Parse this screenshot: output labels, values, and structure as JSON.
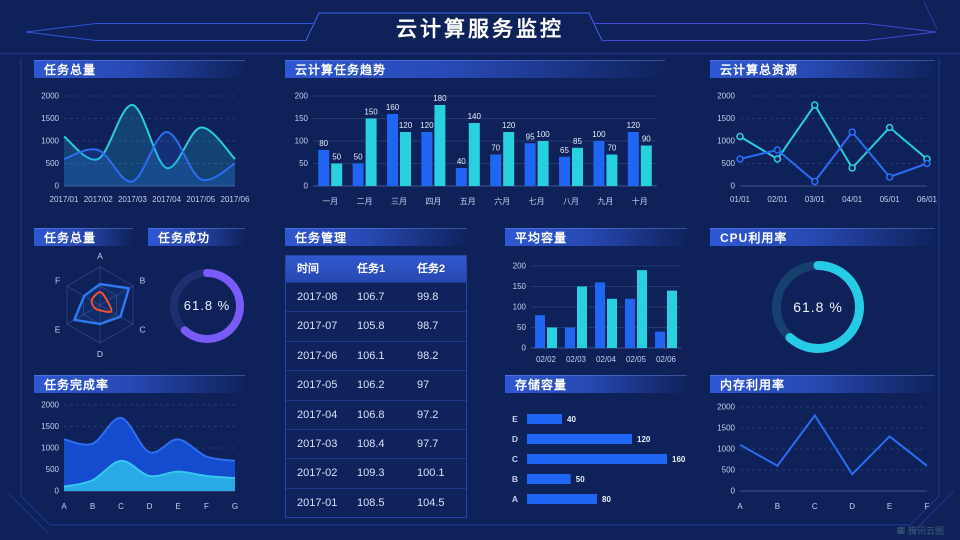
{
  "header": {
    "title": "云计算服务监控"
  },
  "watermark": {
    "label": "腾讯云图"
  },
  "colors": {
    "background": "#0e2159",
    "series_blue": "#1f66f2",
    "series_cyan": "#28d0e0",
    "accent_purple": "#7a5bf7",
    "accent_red": "#f2512e",
    "grid": "rgba(175,190,225,0.22)",
    "axis_line": "rgba(175,190,225,0.45)",
    "axis_text": "#c6d1ee",
    "value_label": "#e8eefc",
    "donut_track_purple": "#1d2f6f",
    "donut_track_cyan": "#17406e",
    "frame_line": "#2a4ac0"
  },
  "panels": {
    "task_total_top": {
      "title": "任务总量"
    },
    "task_trend": {
      "title": "云计算任务趋势"
    },
    "total_resources": {
      "title": "云计算总资源"
    },
    "task_total_radar": {
      "title": "任务总量"
    },
    "task_success": {
      "title": "任务成功",
      "value": "61.8 %"
    },
    "task_management": {
      "title": "任务管理"
    },
    "avg_capacity": {
      "title": "平均容量"
    },
    "cpu_usage": {
      "title": "CPU利用率",
      "value": "61.8 %"
    },
    "task_completion": {
      "title": "任务完成率"
    },
    "storage_capacity": {
      "title": "存储容量"
    },
    "memory_usage": {
      "title": "内存利用率"
    }
  },
  "chart_data": [
    {
      "id": "task_total_top",
      "type": "area",
      "smooth": true,
      "area": "faint",
      "grid": "dashed",
      "x": [
        "2017/01",
        "2017/02",
        "2017/03",
        "2017/04",
        "2017/05",
        "2017/06"
      ],
      "series": [
        {
          "name": "cyan",
          "color": "#28cede",
          "values": [
            1100,
            600,
            1800,
            400,
            1300,
            600
          ]
        },
        {
          "name": "blue",
          "color": "#2b6cf2",
          "values": [
            600,
            800,
            100,
            1200,
            150,
            500
          ]
        }
      ],
      "ylim": [
        0,
        2000
      ],
      "yticks": [
        0,
        500,
        1000,
        1500,
        2000
      ]
    },
    {
      "id": "task_trend",
      "type": "bar",
      "grid": "solid",
      "value_labels": true,
      "categories": [
        "一月",
        "二月",
        "三月",
        "四月",
        "五月",
        "六月",
        "七月",
        "八月",
        "九月",
        "十月"
      ],
      "series": [
        {
          "name": "任务1",
          "color": "#1f66f2",
          "values": [
            80,
            50,
            160,
            120,
            40,
            70,
            95,
            65,
            100,
            120
          ]
        },
        {
          "name": "任务2",
          "color": "#28d0e0",
          "values": [
            50,
            150,
            120,
            180,
            140,
            120,
            100,
            85,
            70,
            90
          ]
        }
      ],
      "ylim": [
        0,
        200
      ],
      "yticks": [
        0,
        50,
        100,
        150,
        200
      ]
    },
    {
      "id": "total_resources",
      "type": "line",
      "smooth": false,
      "markers": true,
      "grid": "dashed",
      "x": [
        "01/01",
        "02/01",
        "03/01",
        "04/01",
        "05/01",
        "06/01"
      ],
      "series": [
        {
          "name": "cyan",
          "color": "#28cede",
          "values": [
            1100,
            600,
            1800,
            400,
            1300,
            600
          ]
        },
        {
          "name": "blue",
          "color": "#2b6cf2",
          "values": [
            600,
            800,
            100,
            1200,
            200,
            500
          ]
        }
      ],
      "ylim": [
        0,
        2000
      ],
      "yticks": [
        0,
        500,
        1000,
        1500,
        2000
      ]
    },
    {
      "id": "task_total_radar",
      "type": "radar",
      "axes": [
        "A",
        "B",
        "C",
        "D",
        "E",
        "F"
      ],
      "max": 100,
      "series": [
        {
          "name": "blue",
          "color": "#2e7bf2",
          "smooth": false,
          "values": [
            55,
            88,
            62,
            50,
            78,
            48
          ]
        },
        {
          "name": "red",
          "color": "#f2512e",
          "smooth": true,
          "values": [
            34,
            22,
            34,
            14,
            16,
            25
          ]
        }
      ]
    },
    {
      "id": "task_success",
      "type": "donut",
      "percent": 61.8,
      "label": "61.8 %",
      "color": "#7a5bf7",
      "track": "#1d2f6f"
    },
    {
      "id": "task_management",
      "type": "table",
      "columns": [
        "时间",
        "任务1",
        "任务2"
      ],
      "rows": [
        [
          "2017-08",
          "106.7",
          "99.8"
        ],
        [
          "2017-07",
          "105.8",
          "98.7"
        ],
        [
          "2017-06",
          "106.1",
          "98.2"
        ],
        [
          "2017-05",
          "106.2",
          "97"
        ],
        [
          "2017-04",
          "106.8",
          "97.2"
        ],
        [
          "2017-03",
          "108.4",
          "97.7"
        ],
        [
          "2017-02",
          "109.3",
          "100.1"
        ],
        [
          "2017-01",
          "108.5",
          "104.5"
        ]
      ]
    },
    {
      "id": "avg_capacity",
      "type": "bar",
      "grid": "solid",
      "value_labels": false,
      "categories": [
        "02/02",
        "02/03",
        "02/04",
        "02/05",
        "02/06"
      ],
      "series": [
        {
          "name": "blue",
          "color": "#1f66f2",
          "values": [
            80,
            50,
            160,
            120,
            40
          ]
        },
        {
          "name": "cyan",
          "color": "#28d0e0",
          "values": [
            50,
            150,
            120,
            190,
            140
          ]
        }
      ],
      "ylim": [
        0,
        200
      ],
      "yticks": [
        0,
        50,
        100,
        150,
        200
      ]
    },
    {
      "id": "cpu_usage",
      "type": "donut",
      "percent": 61.8,
      "label": "61.8 %",
      "color": "#28cbe6",
      "track": "#17406e"
    },
    {
      "id": "task_completion",
      "type": "area",
      "smooth": true,
      "area": "solid",
      "grid": "dashed",
      "x": [
        "A",
        "B",
        "C",
        "D",
        "E",
        "F",
        "G"
      ],
      "series": [
        {
          "name": "blue",
          "color": "#2f6df2",
          "fill": "#1450d8",
          "values": [
            1200,
            1100,
            1700,
            900,
            1200,
            800,
            700
          ]
        },
        {
          "name": "cyan",
          "color": "#35c8f0",
          "fill": "#2bb0e6",
          "values": [
            100,
            250,
            700,
            350,
            450,
            350,
            300
          ]
        }
      ],
      "ylim": [
        0,
        2000
      ],
      "yticks": [
        0,
        500,
        1000,
        1500,
        2000
      ]
    },
    {
      "id": "storage_capacity",
      "type": "hbar",
      "color": "#1f66f2",
      "xmax": 160,
      "categories": [
        "E",
        "D",
        "C",
        "B",
        "A"
      ],
      "values": [
        40,
        120,
        160,
        50,
        80
      ]
    },
    {
      "id": "memory_usage",
      "type": "line",
      "smooth": false,
      "markers": false,
      "grid": "dashed",
      "x": [
        "A",
        "B",
        "C",
        "D",
        "E",
        "F"
      ],
      "series": [
        {
          "name": "blue",
          "color": "#2b6cf2",
          "values": [
            1100,
            600,
            1800,
            400,
            1300,
            600
          ]
        }
      ],
      "ylim": [
        0,
        2000
      ],
      "yticks": [
        0,
        500,
        1000,
        1500,
        2000
      ]
    }
  ]
}
